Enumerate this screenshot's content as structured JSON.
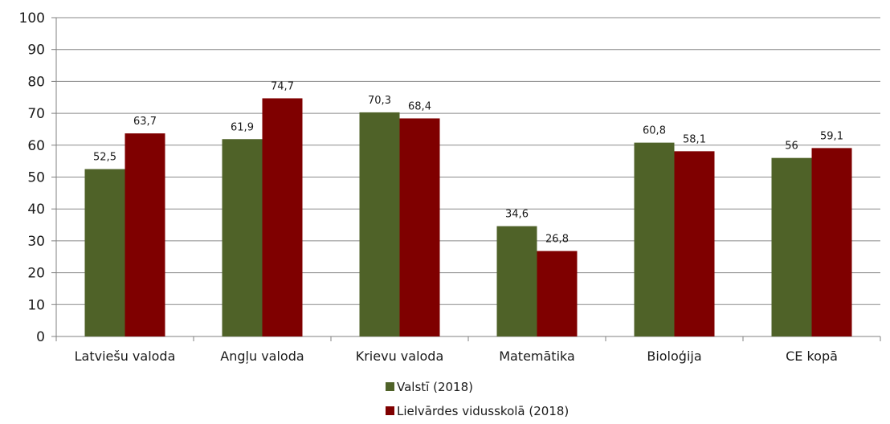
{
  "chart_data": {
    "type": "bar",
    "categories": [
      "Latviešu valoda",
      "Angļu valoda",
      "Krievu valoda",
      "Matemātika",
      "Bioloģija",
      "CE kopā"
    ],
    "series": [
      {
        "name": "Valstī (2018)",
        "color": "#4f6228",
        "values": [
          52.5,
          61.9,
          70.3,
          34.6,
          60.8,
          56
        ],
        "labels": [
          "52,5",
          "61,9",
          "70,3",
          "34,6",
          "60,8",
          "56"
        ]
      },
      {
        "name": "Lielvārdes vidusskolā (2018)",
        "color": "#7f0000",
        "values": [
          63.7,
          74.7,
          68.4,
          26.8,
          58.1,
          59.1
        ],
        "labels": [
          "63,7",
          "74,7",
          "68,4",
          "26,8",
          "58,1",
          "59,1"
        ]
      }
    ],
    "yticks": [
      "0",
      "10",
      "20",
      "30",
      "40",
      "50",
      "60",
      "70",
      "80",
      "90",
      "100"
    ],
    "ylim": [
      0,
      100
    ],
    "grid": true,
    "legend_position": "bottom"
  }
}
